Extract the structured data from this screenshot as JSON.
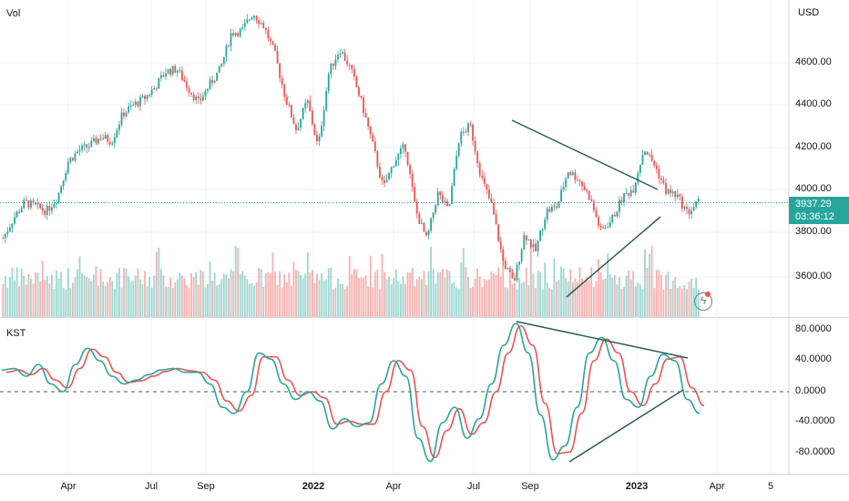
{
  "main_pane_label": "Vol",
  "kst_pane_label": "KST",
  "currency": "USD",
  "last_price": "3937.29",
  "countdown": "03:36:12",
  "colors": {
    "up": "#26a69a",
    "down": "#ef5350",
    "kst": "#26a69a",
    "signal": "#ef5350",
    "trendline": "#2e5f55",
    "grid": "#f0f3fa"
  },
  "chart_data": [
    {
      "type": "candlestick",
      "title": "",
      "ylabel": "USD",
      "y_ticks": [
        "4600.00",
        "4400.00",
        "4200.00",
        "4000.00",
        "3800.00",
        "3600.00"
      ],
      "ylim": [
        3430,
        4780
      ],
      "x_ticks": [
        "Apr",
        "Jul",
        "Sep",
        "2022",
        "Apr",
        "Jul",
        "Sep",
        "2023",
        "Apr",
        "5"
      ],
      "close_path": [
        3780,
        3870,
        3940,
        3920,
        3900,
        3960,
        4120,
        4170,
        4190,
        4230,
        4210,
        4330,
        4370,
        4400,
        4450,
        4520,
        4530,
        4450,
        4380,
        4460,
        4530,
        4690,
        4700,
        4780,
        4720,
        4600,
        4400,
        4260,
        4390,
        4180,
        4520,
        4620,
        4530,
        4380,
        4200,
        4000,
        4120,
        4190,
        3900,
        3770,
        3980,
        3900,
        4230,
        4280,
        4050,
        3920,
        3680,
        3580,
        3800,
        3720,
        3900,
        3920,
        4080,
        4040,
        3960,
        3810,
        3860,
        3960,
        4000,
        4180,
        4100,
        3990,
        3970,
        3890,
        3940
      ],
      "trendlines": [
        {
          "from": [
            "2022-08-16",
            4325
          ],
          "to": [
            "2023-01-20",
            4010
          ]
        },
        {
          "from": [
            "2022-10-13",
            3495
          ],
          "to": [
            "2023-02-01",
            3870
          ]
        }
      ],
      "volume": "histogram, colored by candle direction"
    },
    {
      "type": "line",
      "title": "KST",
      "y_ticks": [
        "80.0000",
        "40.0000",
        "0.0000",
        "-40.0000",
        "-80.0000"
      ],
      "ylim": [
        -95,
        95
      ],
      "zero_line": "dashed",
      "series": [
        {
          "name": "",
          "values": [
            28,
            30,
            20,
            35,
            10,
            0,
            35,
            56,
            40,
            20,
            10,
            15,
            22,
            28,
            30,
            25,
            25,
            10,
            -20,
            -28,
            0,
            50,
            42,
            10,
            -10,
            0,
            -12,
            -48,
            -35,
            -45,
            -40,
            10,
            40,
            20,
            -60,
            -90,
            -40,
            -20,
            -60,
            -35,
            10,
            60,
            88,
            50,
            -30,
            -88,
            -70,
            -20,
            50,
            70,
            40,
            -10,
            -20,
            20,
            48,
            40,
            -10,
            -28
          ]
        },
        {
          "name": "",
          "values": [
            25,
            28,
            22,
            30,
            15,
            5,
            30,
            55,
            45,
            25,
            12,
            14,
            20,
            26,
            30,
            27,
            25,
            15,
            -12,
            -25,
            -5,
            45,
            45,
            15,
            -5,
            0,
            -8,
            -42,
            -38,
            -42,
            -42,
            0,
            40,
            28,
            -45,
            -85,
            -50,
            -22,
            -55,
            -40,
            0,
            50,
            85,
            60,
            -15,
            -80,
            -78,
            -28,
            40,
            68,
            50,
            0,
            -18,
            10,
            42,
            45,
            5,
            -18
          ]
        }
      ],
      "trendlines": [
        {
          "from": [
            "2022-08-16",
            87
          ],
          "to": [
            "2023-02-20",
            42
          ]
        },
        {
          "from": [
            "2022-10-13",
            -87
          ],
          "to": [
            "2023-02-24",
            5
          ]
        }
      ]
    }
  ]
}
